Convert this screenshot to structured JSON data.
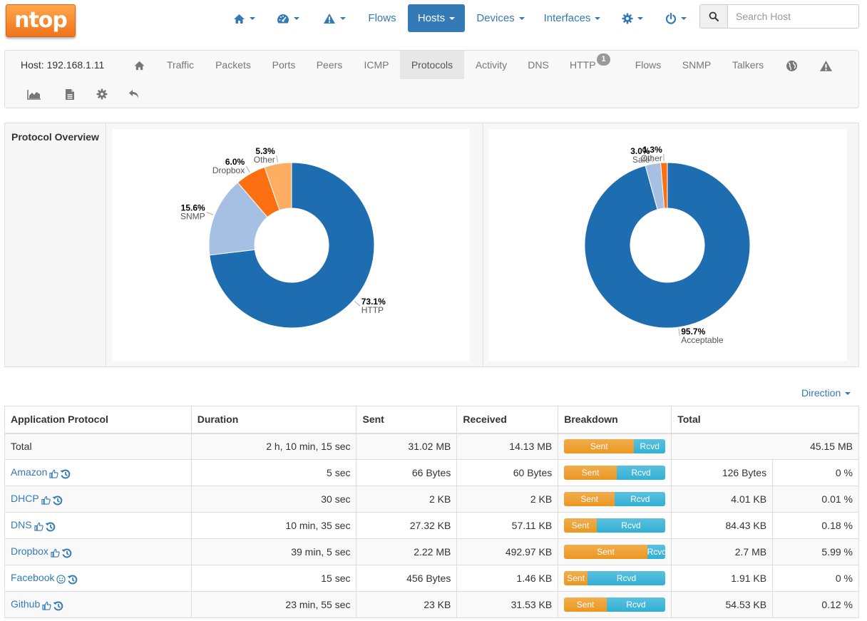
{
  "brand": {
    "logo_text": "ntop",
    "accent": "#337ab7",
    "logo_color": "#f47b20"
  },
  "nav": {
    "home_icon": "home-icon",
    "dashboard_icon": "dashboard-icon",
    "alerts_icon": "warning-icon",
    "flows_label": "Flows",
    "hosts_label": "Hosts",
    "devices_label": "Devices",
    "interfaces_label": "Interfaces",
    "settings_icon": "gear-icon",
    "power_icon": "power-icon"
  },
  "search": {
    "placeholder": "Search Host",
    "value": ""
  },
  "hostbar": {
    "host_label": "Host: 192.168.1.11",
    "tabs": [
      "Traffic",
      "Packets",
      "Ports",
      "Peers",
      "ICMP",
      "Protocols",
      "Activity",
      "DNS",
      "HTTP",
      "Flows",
      "SNMP",
      "Talkers"
    ],
    "active_tab": "Protocols",
    "http_badge": "1"
  },
  "overview": {
    "label": "Protocol Overview",
    "chart1_colors": [
      "#1f6db1",
      "#a6c0e4",
      "#fd7012",
      "#fead63"
    ],
    "chart2_colors": [
      "#1f6db1",
      "#a6c0e4",
      "#fd7012"
    ]
  },
  "chart_data": [
    {
      "type": "pie",
      "title": "",
      "labels": [
        "HTTP",
        "SNMP",
        "Dropbox",
        "Other"
      ],
      "values": [
        73.1,
        15.6,
        6.0,
        5.3
      ],
      "value_labels": [
        "73.1%",
        "15.6%",
        "6.0%",
        "5.3%"
      ]
    },
    {
      "type": "pie",
      "title": "",
      "labels": [
        "Acceptable",
        "Safe",
        "Other"
      ],
      "values": [
        95.7,
        3.0,
        1.3
      ],
      "value_labels": [
        "95.7%",
        "3.0%",
        "1.3%"
      ]
    }
  ],
  "direction_label": "Direction",
  "table": {
    "headers": [
      "Application Protocol",
      "Duration",
      "Sent",
      "Received",
      "Breakdown",
      "Total"
    ],
    "bar_sent_label": "Sent",
    "bar_rcvd_label": "Rcvd",
    "total_row": {
      "name": "Total",
      "duration": "2 h, 10 min, 15 sec",
      "sent": "31.02 MB",
      "received": "14.13 MB",
      "sent_share": 0.69,
      "total": "45.15 MB"
    },
    "rows": [
      {
        "name": "Amazon",
        "icon": "thumbs-up-icon",
        "duration": "5 sec",
        "sent": "66 Bytes",
        "received": "60 Bytes",
        "sent_share": 0.52,
        "total": "126 Bytes",
        "pct": "0 %"
      },
      {
        "name": "DHCP",
        "icon": "thumbs-up-icon",
        "duration": "30 sec",
        "sent": "2 KB",
        "received": "2 KB",
        "sent_share": 0.5,
        "total": "4.01 KB",
        "pct": "0.01 %"
      },
      {
        "name": "DNS",
        "icon": "thumbs-up-icon",
        "duration": "10 min, 35 sec",
        "sent": "27.32 KB",
        "received": "57.11 KB",
        "sent_share": 0.32,
        "total": "84.43 KB",
        "pct": "0.18 %"
      },
      {
        "name": "Dropbox",
        "icon": "thumbs-up-icon",
        "duration": "39 min, 5 sec",
        "sent": "2.22 MB",
        "received": "492.97 KB",
        "sent_share": 0.82,
        "total": "2.7 MB",
        "pct": "5.99 %"
      },
      {
        "name": "Facebook",
        "icon": "smile-icon",
        "duration": "15 sec",
        "sent": "456 Bytes",
        "received": "1.46 KB",
        "sent_share": 0.23,
        "total": "1.91 KB",
        "pct": "0 %"
      },
      {
        "name": "Github",
        "icon": "thumbs-up-icon",
        "duration": "23 min, 55 sec",
        "sent": "23 KB",
        "received": "31.53 KB",
        "sent_share": 0.42,
        "total": "54.53 KB",
        "pct": "0.12 %"
      }
    ]
  }
}
